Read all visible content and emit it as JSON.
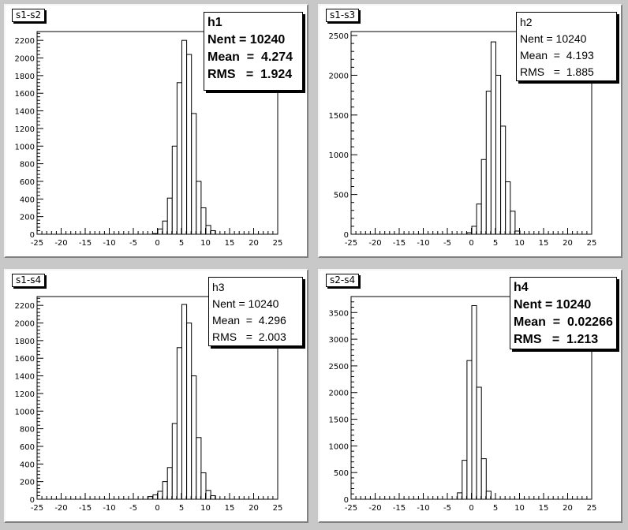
{
  "chart_data": [
    {
      "type": "bar",
      "pad_title": "s1-s2",
      "stats_style": "bold",
      "stats": {
        "name": "h1",
        "entries_label": "Nent = 10240",
        "mean_label": "Mean  =  4.274",
        "rms_label": "RMS   =  1.924"
      },
      "xlim": [
        -25,
        25
      ],
      "ylim": [
        0,
        2300
      ],
      "x_ticks": [
        -25,
        -20,
        -15,
        -10,
        -5,
        0,
        5,
        10,
        15,
        20,
        25
      ],
      "y_ticks": [
        0,
        200,
        400,
        600,
        800,
        1000,
        1200,
        1400,
        1600,
        1800,
        2000,
        2200
      ],
      "bins_x": [
        -1,
        0,
        1,
        2,
        3,
        4,
        5,
        6,
        7,
        8,
        9,
        10,
        11
      ],
      "values": [
        8,
        60,
        150,
        410,
        1000,
        1720,
        2200,
        2040,
        1370,
        600,
        300,
        100,
        40
      ]
    },
    {
      "type": "bar",
      "pad_title": "s1-s3",
      "stats_style": "normal",
      "stats": {
        "name": "h2",
        "entries_label": "Nent = 10240",
        "mean_label": "Mean  =  4.193",
        "rms_label": "RMS   =  1.885"
      },
      "xlim": [
        -25,
        25
      ],
      "ylim": [
        0,
        2550
      ],
      "x_ticks": [
        -25,
        -20,
        -15,
        -10,
        -5,
        0,
        5,
        10,
        15,
        20,
        25
      ],
      "y_ticks": [
        0,
        500,
        1000,
        1500,
        2000,
        2500
      ],
      "bins_x": [
        -1,
        0,
        1,
        2,
        3,
        4,
        5,
        6,
        7,
        8,
        9
      ],
      "values": [
        20,
        100,
        380,
        940,
        1800,
        2420,
        2000,
        1360,
        660,
        290,
        40
      ]
    },
    {
      "type": "bar",
      "pad_title": "s1-s4",
      "stats_style": "normal",
      "stats": {
        "name": "h3",
        "entries_label": "Nent = 10240",
        "mean_label": "Mean  =  4.296",
        "rms_label": "RMS   =  2.003"
      },
      "xlim": [
        -25,
        25
      ],
      "ylim": [
        0,
        2300
      ],
      "x_ticks": [
        -25,
        -20,
        -15,
        -10,
        -5,
        0,
        5,
        10,
        15,
        20,
        25
      ],
      "y_ticks": [
        0,
        200,
        400,
        600,
        800,
        1000,
        1200,
        1400,
        1600,
        1800,
        2000,
        2200
      ],
      "bins_x": [
        -2,
        -1,
        0,
        1,
        2,
        3,
        4,
        5,
        6,
        7,
        8,
        9,
        10,
        11
      ],
      "values": [
        30,
        50,
        90,
        200,
        360,
        860,
        1720,
        2210,
        2000,
        1400,
        700,
        300,
        100,
        40
      ]
    },
    {
      "type": "bar",
      "pad_title": "s2-s4",
      "stats_style": "bold",
      "stats": {
        "name": "h4",
        "entries_label": "Nent = 10240",
        "mean_label": "Mean  =  0.02266",
        "rms_label": "RMS   =  1.213"
      },
      "xlim": [
        -25,
        25
      ],
      "ylim": [
        0,
        3800
      ],
      "x_ticks": [
        -25,
        -20,
        -15,
        -10,
        -5,
        0,
        5,
        10,
        15,
        20,
        25
      ],
      "y_ticks": [
        0,
        500,
        1000,
        1500,
        2000,
        2500,
        3000,
        3500
      ],
      "bins_x": [
        -3,
        -2,
        -1,
        0,
        1,
        2,
        3
      ],
      "values": [
        120,
        730,
        2600,
        3630,
        2100,
        760,
        150
      ]
    }
  ]
}
